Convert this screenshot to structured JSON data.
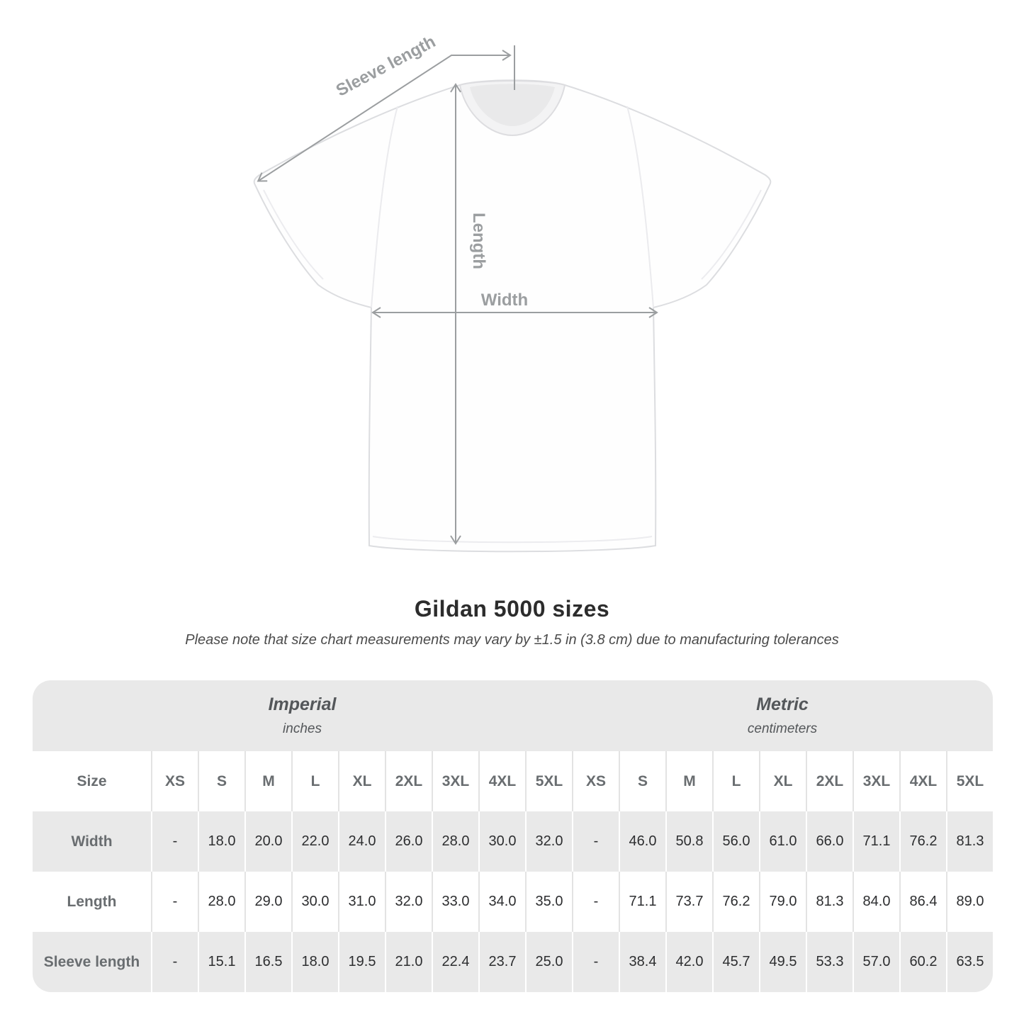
{
  "title": "Gildan 5000 sizes",
  "note": "Please note that size chart measurements may vary by ±1.5 in (3.8 cm) due to manufacturing tolerances",
  "diagram": {
    "labels": {
      "sleeve_length": "Sleeve length",
      "length": "Length",
      "width": "Width"
    },
    "arrow_color": "#9b9ea0"
  },
  "chart_data": {
    "type": "table",
    "title": "Gildan 5000 sizes",
    "size_header": "Size",
    "unit_groups": [
      {
        "label": "Imperial",
        "unit": "inches"
      },
      {
        "label": "Metric",
        "unit": "centimeters"
      }
    ],
    "sizes": [
      "XS",
      "S",
      "M",
      "L",
      "XL",
      "2XL",
      "3XL",
      "4XL",
      "5XL"
    ],
    "rows": [
      {
        "label": "Width",
        "imperial": [
          "-",
          "18.0",
          "20.0",
          "22.0",
          "24.0",
          "26.0",
          "28.0",
          "30.0",
          "32.0"
        ],
        "metric": [
          "-",
          "46.0",
          "50.8",
          "56.0",
          "61.0",
          "66.0",
          "71.1",
          "76.2",
          "81.3"
        ]
      },
      {
        "label": "Length",
        "imperial": [
          "-",
          "28.0",
          "29.0",
          "30.0",
          "31.0",
          "32.0",
          "33.0",
          "34.0",
          "35.0"
        ],
        "metric": [
          "-",
          "71.1",
          "73.7",
          "76.2",
          "79.0",
          "81.3",
          "84.0",
          "86.4",
          "89.0"
        ]
      },
      {
        "label": "Sleeve length",
        "imperial": [
          "-",
          "15.1",
          "16.5",
          "18.0",
          "19.5",
          "21.0",
          "22.4",
          "23.7",
          "25.0"
        ],
        "metric": [
          "-",
          "38.4",
          "42.0",
          "45.7",
          "49.5",
          "53.3",
          "57.0",
          "60.2",
          "63.5"
        ]
      }
    ],
    "colors": {
      "band": "#e9e9e9",
      "stripe": "#e9e9e9"
    }
  }
}
